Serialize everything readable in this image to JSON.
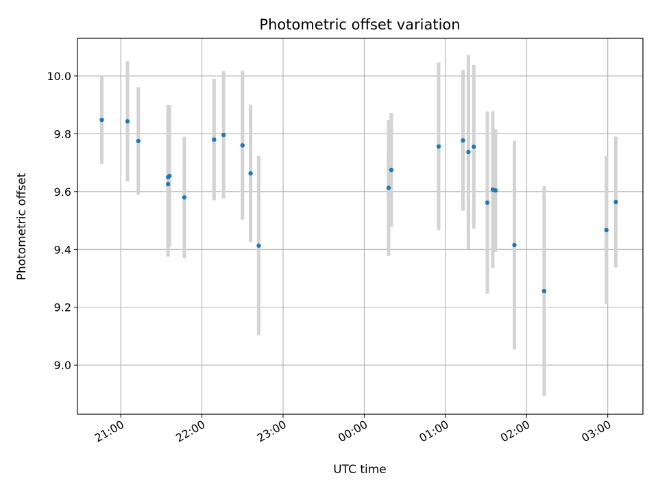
{
  "chart_data": {
    "type": "scatter",
    "title": "Photometric offset variation",
    "xlabel": "UTC time",
    "ylabel": "Photometric offset",
    "x_ticks": [
      "21:00",
      "22:00",
      "23:00",
      "00:00",
      "01:00",
      "02:00",
      "03:00"
    ],
    "xlim": [
      "20:28",
      "03:26"
    ],
    "y_ticks": [
      "9.0",
      "9.2",
      "9.4",
      "9.6",
      "9.8",
      "10.0"
    ],
    "ylim": [
      8.83,
      10.13
    ],
    "grid": true,
    "marker_color": "#1f77b4",
    "errorbar_color": "#d3d3d3",
    "points": [
      {
        "x": "20:46",
        "y": 9.848,
        "err": 0.152
      },
      {
        "x": "21:05",
        "y": 9.843,
        "err": 0.208
      },
      {
        "x": "21:13",
        "y": 9.775,
        "err": 0.186
      },
      {
        "x": "21:35",
        "y": 9.626,
        "err": 0.25
      },
      {
        "x": "21:35",
        "y": 9.65,
        "err": 0.25
      },
      {
        "x": "21:36",
        "y": 9.654,
        "err": 0.245
      },
      {
        "x": "21:47",
        "y": 9.58,
        "err": 0.21
      },
      {
        "x": "22:09",
        "y": 9.78,
        "err": 0.21
      },
      {
        "x": "22:16",
        "y": 9.796,
        "err": 0.22
      },
      {
        "x": "22:30",
        "y": 9.76,
        "err": 0.257
      },
      {
        "x": "22:36",
        "y": 9.663,
        "err": 0.238
      },
      {
        "x": "22:42",
        "y": 9.413,
        "err": 0.31
      },
      {
        "x": "00:18",
        "y": 9.613,
        "err": 0.235
      },
      {
        "x": "00:20",
        "y": 9.675,
        "err": 0.197
      },
      {
        "x": "00:55",
        "y": 9.756,
        "err": 0.29
      },
      {
        "x": "01:13",
        "y": 9.777,
        "err": 0.243
      },
      {
        "x": "01:17",
        "y": 9.737,
        "err": 0.336
      },
      {
        "x": "01:21",
        "y": 9.755,
        "err": 0.283
      },
      {
        "x": "01:31",
        "y": 9.562,
        "err": 0.315
      },
      {
        "x": "01:35",
        "y": 9.607,
        "err": 0.271
      },
      {
        "x": "01:37",
        "y": 9.604,
        "err": 0.212
      },
      {
        "x": "01:51",
        "y": 9.415,
        "err": 0.361
      },
      {
        "x": "02:13",
        "y": 9.256,
        "err": 0.363
      },
      {
        "x": "02:59",
        "y": 9.467,
        "err": 0.256
      },
      {
        "x": "03:06",
        "y": 9.564,
        "err": 0.226
      }
    ]
  }
}
